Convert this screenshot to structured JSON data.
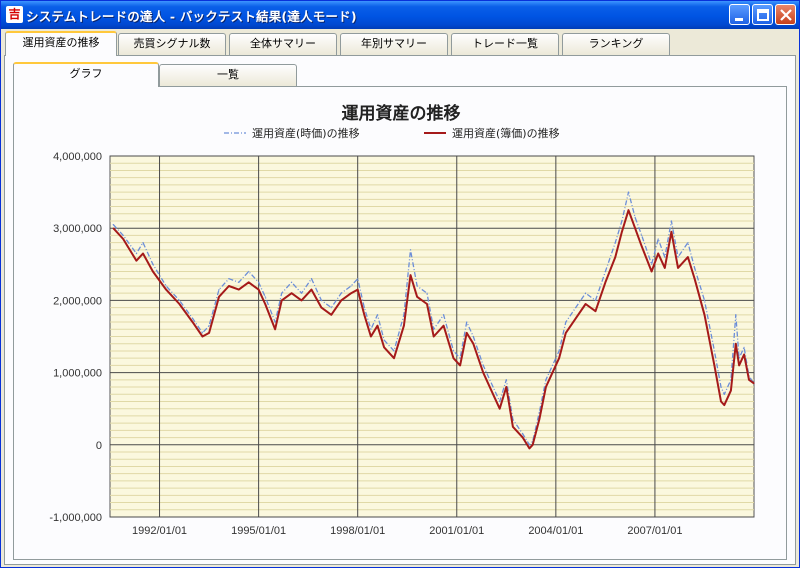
{
  "window": {
    "title_icon": "吉",
    "title": "システムトレードの達人 - バックテスト結果(達人モード)"
  },
  "tabs": [
    {
      "label": "運用資産の推移",
      "active": true
    },
    {
      "label": "売買シグナル数",
      "active": false
    },
    {
      "label": "全体サマリー",
      "active": false
    },
    {
      "label": "年別サマリー",
      "active": false
    },
    {
      "label": "トレード一覧",
      "active": false
    },
    {
      "label": "ランキング",
      "active": false
    }
  ],
  "subtabs": [
    {
      "label": "グラフ",
      "active": true
    },
    {
      "label": "一覧",
      "active": false
    }
  ],
  "colors": {
    "mark_series": "#6c8ed8",
    "book_series": "#a51a1a",
    "plot_bg": "#fbf8de",
    "grid_major": "#4a4a4a",
    "grid_minor": "#e0d9a6"
  },
  "chart_data": {
    "type": "line",
    "title": "運用資産の推移",
    "legend_position": "top",
    "ylim": [
      -1000000,
      4000000
    ],
    "y_ticks": [
      {
        "value": 4000000,
        "label": "4,000,000"
      },
      {
        "value": 3000000,
        "label": "3,000,000"
      },
      {
        "value": 2000000,
        "label": "2,000,000"
      },
      {
        "value": 1000000,
        "label": "1,000,000"
      },
      {
        "value": 0,
        "label": "0"
      },
      {
        "value": -1000000,
        "label": "-1,000,000"
      }
    ],
    "x_range": [
      1990.5,
      2010.0
    ],
    "x_ticks": [
      {
        "value": 1992.0,
        "label": "1992/01/01"
      },
      {
        "value": 1995.0,
        "label": "1995/01/01"
      },
      {
        "value": 1998.0,
        "label": "1998/01/01"
      },
      {
        "value": 2001.0,
        "label": "2001/01/01"
      },
      {
        "value": 2004.0,
        "label": "2004/01/01"
      },
      {
        "value": 2007.0,
        "label": "2007/01/01"
      }
    ],
    "grid": true,
    "series": [
      {
        "name": "運用資産(時価)の推移",
        "style": "dash-dot",
        "points": [
          [
            1990.6,
            3050000
          ],
          [
            1990.9,
            2900000
          ],
          [
            1991.3,
            2650000
          ],
          [
            1991.5,
            2800000
          ],
          [
            1991.8,
            2500000
          ],
          [
            1992.2,
            2200000
          ],
          [
            1992.6,
            2000000
          ],
          [
            1993.0,
            1750000
          ],
          [
            1993.3,
            1550000
          ],
          [
            1993.5,
            1650000
          ],
          [
            1993.8,
            2150000
          ],
          [
            1994.1,
            2300000
          ],
          [
            1994.4,
            2250000
          ],
          [
            1994.7,
            2400000
          ],
          [
            1995.0,
            2250000
          ],
          [
            1995.2,
            2050000
          ],
          [
            1995.5,
            1700000
          ],
          [
            1995.7,
            2100000
          ],
          [
            1996.0,
            2250000
          ],
          [
            1996.3,
            2100000
          ],
          [
            1996.6,
            2300000
          ],
          [
            1996.9,
            2000000
          ],
          [
            1997.2,
            1900000
          ],
          [
            1997.5,
            2100000
          ],
          [
            1997.8,
            2200000
          ],
          [
            1998.0,
            2300000
          ],
          [
            1998.2,
            1900000
          ],
          [
            1998.4,
            1600000
          ],
          [
            1998.6,
            1800000
          ],
          [
            1998.8,
            1450000
          ],
          [
            1999.1,
            1300000
          ],
          [
            1999.4,
            1800000
          ],
          [
            1999.6,
            2700000
          ],
          [
            1999.8,
            2200000
          ],
          [
            2000.1,
            2100000
          ],
          [
            2000.3,
            1600000
          ],
          [
            2000.6,
            1800000
          ],
          [
            2000.9,
            1300000
          ],
          [
            2001.1,
            1200000
          ],
          [
            2001.3,
            1700000
          ],
          [
            2001.5,
            1500000
          ],
          [
            2001.8,
            1100000
          ],
          [
            2002.1,
            800000
          ],
          [
            2002.3,
            600000
          ],
          [
            2002.5,
            900000
          ],
          [
            2002.7,
            350000
          ],
          [
            2003.0,
            150000
          ],
          [
            2003.2,
            0
          ],
          [
            2003.3,
            50000
          ],
          [
            2003.5,
            450000
          ],
          [
            2003.7,
            900000
          ],
          [
            2003.9,
            1100000
          ],
          [
            2004.1,
            1300000
          ],
          [
            2004.3,
            1700000
          ],
          [
            2004.6,
            1900000
          ],
          [
            2004.9,
            2100000
          ],
          [
            2005.2,
            2000000
          ],
          [
            2005.5,
            2400000
          ],
          [
            2005.8,
            2800000
          ],
          [
            2006.0,
            3100000
          ],
          [
            2006.2,
            3500000
          ],
          [
            2006.4,
            3150000
          ],
          [
            2006.6,
            2900000
          ],
          [
            2006.9,
            2500000
          ],
          [
            2007.1,
            2850000
          ],
          [
            2007.3,
            2600000
          ],
          [
            2007.5,
            3100000
          ],
          [
            2007.7,
            2600000
          ],
          [
            2008.0,
            2800000
          ],
          [
            2008.2,
            2450000
          ],
          [
            2008.5,
            2000000
          ],
          [
            2008.8,
            1300000
          ],
          [
            2009.0,
            800000
          ],
          [
            2009.1,
            700000
          ],
          [
            2009.3,
            900000
          ],
          [
            2009.45,
            1800000
          ],
          [
            2009.55,
            1200000
          ],
          [
            2009.7,
            1350000
          ],
          [
            2009.85,
            950000
          ],
          [
            2010.0,
            850000
          ]
        ]
      },
      {
        "name": "運用資産(簿価)の推移",
        "style": "solid",
        "points": [
          [
            1990.6,
            3000000
          ],
          [
            1990.9,
            2850000
          ],
          [
            1991.3,
            2550000
          ],
          [
            1991.5,
            2650000
          ],
          [
            1991.8,
            2400000
          ],
          [
            1992.2,
            2150000
          ],
          [
            1992.6,
            1950000
          ],
          [
            1993.0,
            1700000
          ],
          [
            1993.3,
            1500000
          ],
          [
            1993.5,
            1550000
          ],
          [
            1993.8,
            2050000
          ],
          [
            1994.1,
            2200000
          ],
          [
            1994.4,
            2150000
          ],
          [
            1994.7,
            2250000
          ],
          [
            1995.0,
            2150000
          ],
          [
            1995.2,
            1950000
          ],
          [
            1995.5,
            1600000
          ],
          [
            1995.7,
            2000000
          ],
          [
            1996.0,
            2100000
          ],
          [
            1996.3,
            2000000
          ],
          [
            1996.6,
            2150000
          ],
          [
            1996.9,
            1900000
          ],
          [
            1997.2,
            1800000
          ],
          [
            1997.5,
            2000000
          ],
          [
            1997.8,
            2100000
          ],
          [
            1998.0,
            2150000
          ],
          [
            1998.2,
            1800000
          ],
          [
            1998.4,
            1500000
          ],
          [
            1998.6,
            1650000
          ],
          [
            1998.8,
            1350000
          ],
          [
            1999.1,
            1200000
          ],
          [
            1999.4,
            1650000
          ],
          [
            1999.6,
            2350000
          ],
          [
            1999.8,
            2050000
          ],
          [
            2000.1,
            1950000
          ],
          [
            2000.3,
            1500000
          ],
          [
            2000.6,
            1650000
          ],
          [
            2000.9,
            1200000
          ],
          [
            2001.1,
            1100000
          ],
          [
            2001.3,
            1550000
          ],
          [
            2001.5,
            1400000
          ],
          [
            2001.8,
            1000000
          ],
          [
            2002.1,
            700000
          ],
          [
            2002.3,
            500000
          ],
          [
            2002.5,
            800000
          ],
          [
            2002.7,
            250000
          ],
          [
            2003.0,
            100000
          ],
          [
            2003.2,
            -50000
          ],
          [
            2003.3,
            0
          ],
          [
            2003.5,
            350000
          ],
          [
            2003.7,
            800000
          ],
          [
            2003.9,
            1000000
          ],
          [
            2004.1,
            1200000
          ],
          [
            2004.3,
            1550000
          ],
          [
            2004.6,
            1750000
          ],
          [
            2004.9,
            1950000
          ],
          [
            2005.2,
            1850000
          ],
          [
            2005.5,
            2250000
          ],
          [
            2005.8,
            2600000
          ],
          [
            2006.0,
            2950000
          ],
          [
            2006.2,
            3250000
          ],
          [
            2006.4,
            3000000
          ],
          [
            2006.6,
            2750000
          ],
          [
            2006.9,
            2400000
          ],
          [
            2007.1,
            2650000
          ],
          [
            2007.3,
            2450000
          ],
          [
            2007.5,
            2950000
          ],
          [
            2007.7,
            2450000
          ],
          [
            2008.0,
            2600000
          ],
          [
            2008.2,
            2300000
          ],
          [
            2008.5,
            1800000
          ],
          [
            2008.8,
            1100000
          ],
          [
            2009.0,
            600000
          ],
          [
            2009.1,
            550000
          ],
          [
            2009.3,
            750000
          ],
          [
            2009.45,
            1400000
          ],
          [
            2009.55,
            1100000
          ],
          [
            2009.7,
            1250000
          ],
          [
            2009.85,
            900000
          ],
          [
            2010.0,
            850000
          ]
        ]
      }
    ]
  }
}
